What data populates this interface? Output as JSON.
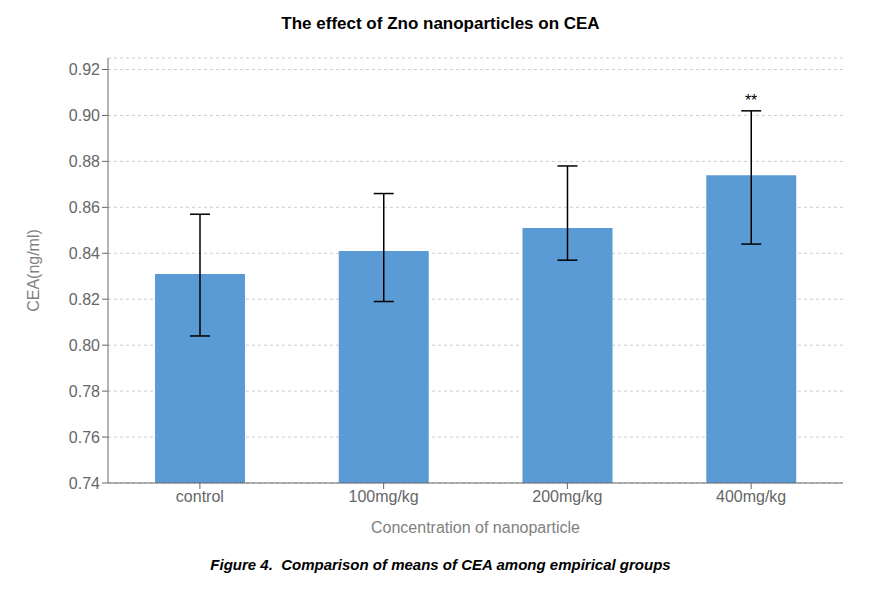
{
  "chart_data": {
    "type": "bar",
    "title": "The effect of Zno nanoparticles on CEA",
    "xlabel": "Concentration of nanoparticle",
    "ylabel": "CEA(ng/ml)",
    "categories": [
      "control",
      "100mg/kg",
      "200mg/kg",
      "400mg/kg"
    ],
    "values": [
      0.831,
      0.841,
      0.851,
      0.874
    ],
    "error_upper": [
      0.026,
      0.025,
      0.027,
      0.028
    ],
    "error_lower": [
      0.027,
      0.022,
      0.014,
      0.03
    ],
    "color": "#5b9bd5",
    "ylim": [
      0.74,
      0.925
    ],
    "yticks": [
      0.74,
      0.76,
      0.78,
      {
        "value": 0.8,
        "label": "0.80"
      },
      0.82,
      0.84,
      0.86,
      0.88,
      {
        "value": 0.9,
        "label": "0.90"
      },
      0.92
    ],
    "grid": true,
    "annotations": [
      {
        "text": "**",
        "category": "400mg/kg"
      }
    ],
    "caption": "Figure 4.  Comparison of means of CEA among empirical groups"
  }
}
